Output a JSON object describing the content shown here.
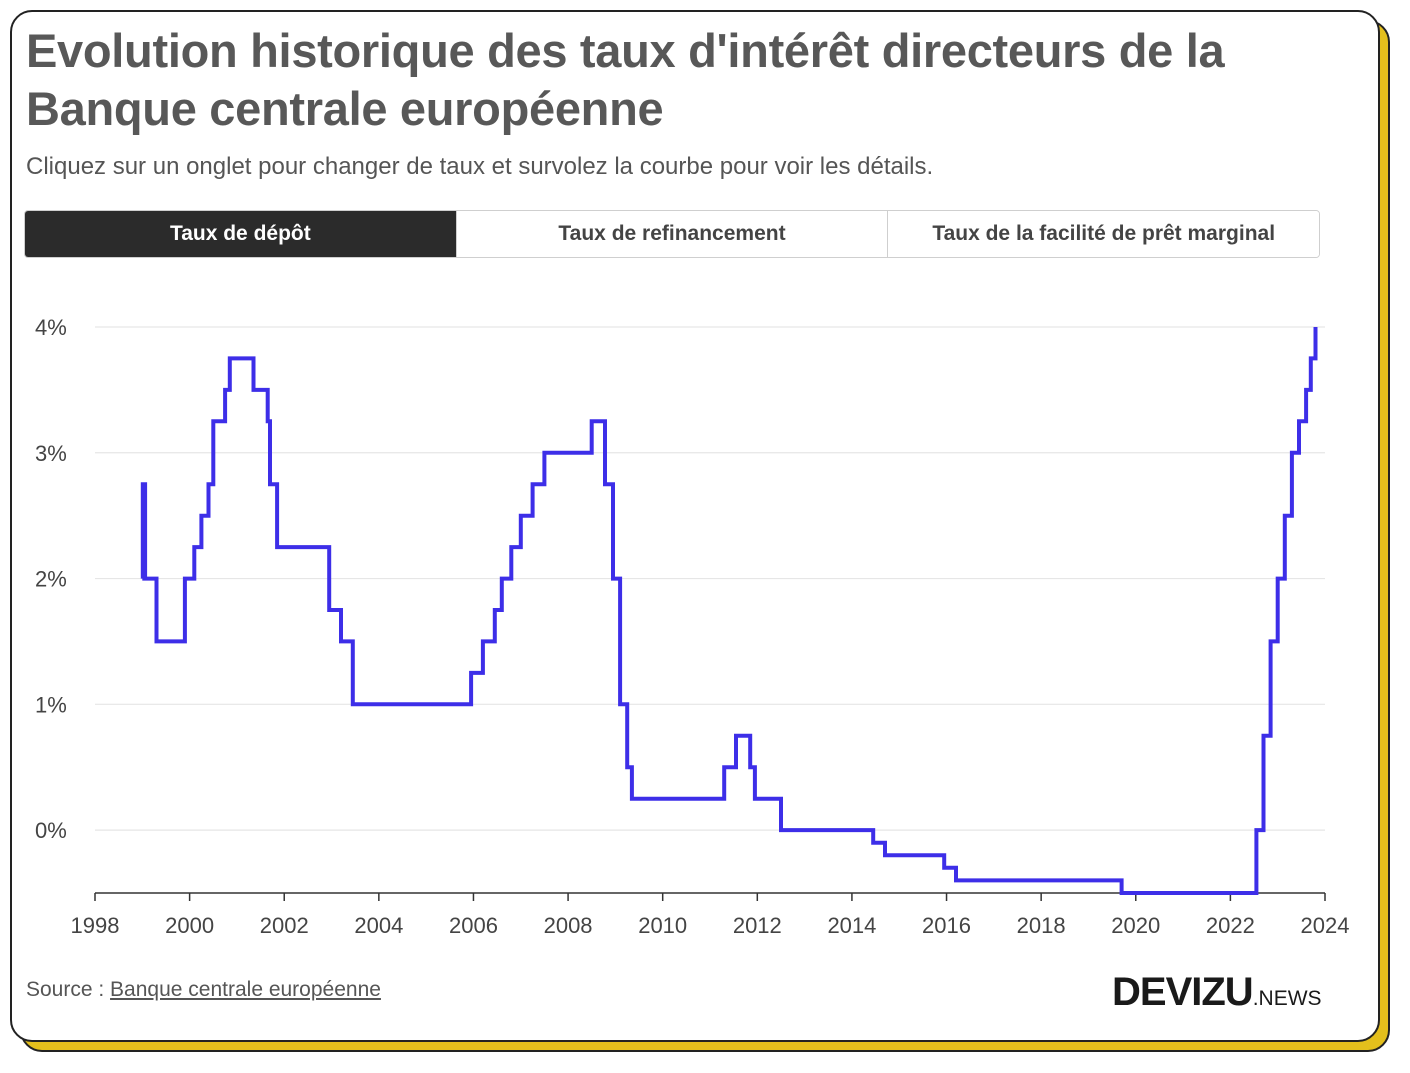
{
  "title": "Evolution historique des taux d'intérêt directeurs de la Banque centrale européenne",
  "subtitle": "Cliquez sur un onglet pour changer de taux et survolez la courbe pour voir les détails.",
  "tabs": [
    {
      "label": "Taux de dépôt",
      "active": true
    },
    {
      "label": "Taux de refinancement",
      "active": false
    },
    {
      "label": "Taux de la facilité de prêt marginal",
      "active": false
    }
  ],
  "source": {
    "prefix": "Source : ",
    "link": "Banque centrale européenne"
  },
  "brand": {
    "main": "DEVIZU",
    "sub": ".NEWS"
  },
  "colors": {
    "line": "#3d2ee8",
    "grid": "#e6e6e6",
    "axis": "#333333",
    "accent": "#e4bf1c"
  },
  "chart_data": {
    "type": "line",
    "step": true,
    "title": "",
    "xlabel": "",
    "ylabel": "",
    "xlim": [
      1998,
      2024
    ],
    "ylim": [
      -0.5,
      4
    ],
    "x_ticks": [
      1998,
      2000,
      2002,
      2004,
      2006,
      2008,
      2010,
      2012,
      2014,
      2016,
      2018,
      2020,
      2022,
      2024
    ],
    "y_ticks": [
      {
        "value": 4,
        "label": "4%"
      },
      {
        "value": 3,
        "label": "3%"
      },
      {
        "value": 2,
        "label": "2%"
      },
      {
        "value": 1,
        "label": "1%"
      },
      {
        "value": 0,
        "label": "0%"
      }
    ],
    "grid": "horizontal",
    "series": [
      {
        "points": [
          [
            1999.0,
            2.0
          ],
          [
            1999.01,
            2.75
          ],
          [
            1999.06,
            2.0
          ],
          [
            1999.3,
            1.5
          ],
          [
            1999.9,
            2.0
          ],
          [
            2000.1,
            2.25
          ],
          [
            2000.25,
            2.5
          ],
          [
            2000.4,
            2.75
          ],
          [
            2000.5,
            3.25
          ],
          [
            2000.75,
            3.5
          ],
          [
            2000.85,
            3.75
          ],
          [
            2001.35,
            3.5
          ],
          [
            2001.65,
            3.25
          ],
          [
            2001.7,
            2.75
          ],
          [
            2001.85,
            2.25
          ],
          [
            2002.95,
            1.75
          ],
          [
            2003.2,
            1.5
          ],
          [
            2003.45,
            1.0
          ],
          [
            2005.95,
            1.25
          ],
          [
            2006.2,
            1.5
          ],
          [
            2006.45,
            1.75
          ],
          [
            2006.6,
            2.0
          ],
          [
            2006.8,
            2.25
          ],
          [
            2007.0,
            2.5
          ],
          [
            2007.25,
            2.75
          ],
          [
            2007.5,
            3.0
          ],
          [
            2008.5,
            3.25
          ],
          [
            2008.78,
            2.75
          ],
          [
            2008.95,
            2.0
          ],
          [
            2009.1,
            1.0
          ],
          [
            2009.25,
            0.5
          ],
          [
            2009.35,
            0.25
          ],
          [
            2011.3,
            0.5
          ],
          [
            2011.55,
            0.75
          ],
          [
            2011.85,
            0.5
          ],
          [
            2011.95,
            0.25
          ],
          [
            2012.5,
            0.0
          ],
          [
            2014.45,
            -0.1
          ],
          [
            2014.7,
            -0.2
          ],
          [
            2015.95,
            -0.3
          ],
          [
            2016.2,
            -0.4
          ],
          [
            2019.7,
            -0.5
          ],
          [
            2022.55,
            0.0
          ],
          [
            2022.7,
            0.75
          ],
          [
            2022.85,
            1.5
          ],
          [
            2023.0,
            2.0
          ],
          [
            2023.15,
            2.5
          ],
          [
            2023.3,
            3.0
          ],
          [
            2023.45,
            3.25
          ],
          [
            2023.6,
            3.5
          ],
          [
            2023.7,
            3.75
          ],
          [
            2023.8,
            4.0
          ]
        ]
      }
    ]
  }
}
